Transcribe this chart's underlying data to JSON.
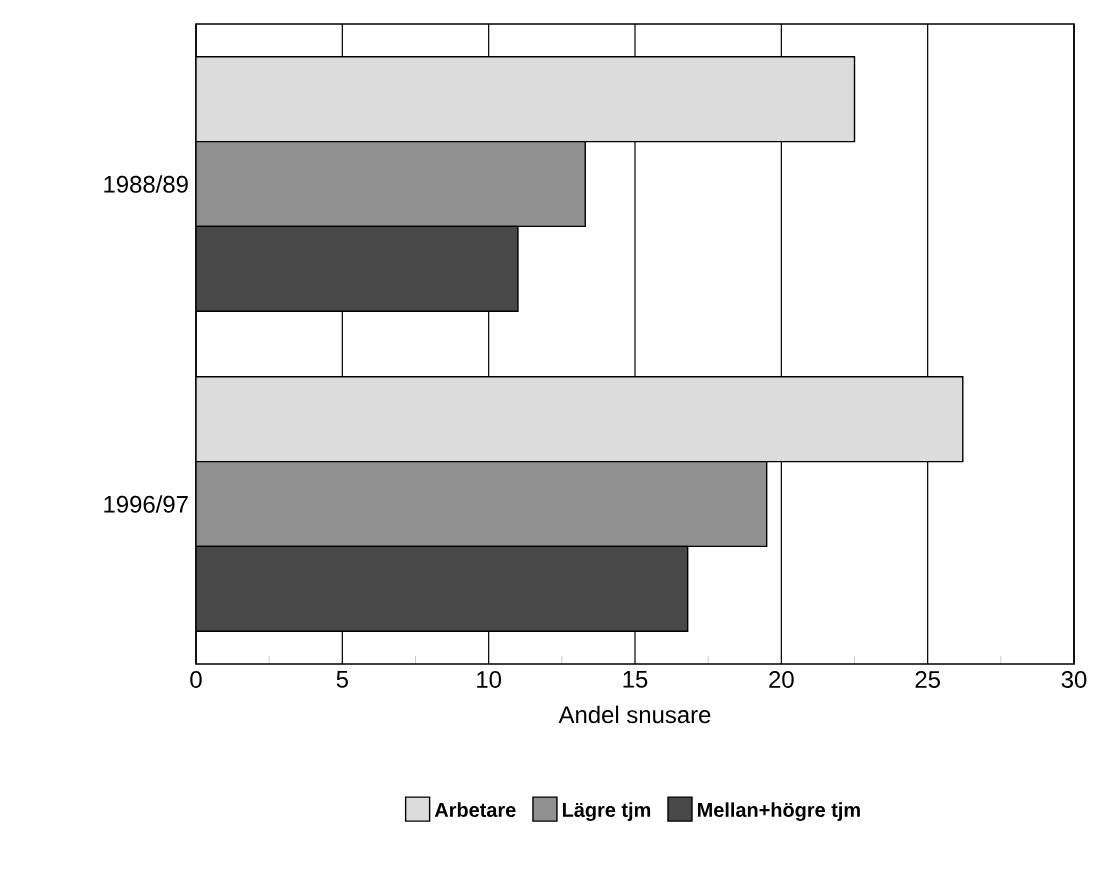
{
  "chart_data": {
    "type": "bar",
    "orientation": "horizontal",
    "xlabel": "Andel snusare",
    "categories": [
      "1988/89",
      "1996/97"
    ],
    "series": [
      {
        "name": "Arbetare",
        "color": "#dcdcdc",
        "values": [
          22.5,
          26.2
        ]
      },
      {
        "name": "Lägre tjm",
        "color": "#909090",
        "values": [
          13.3,
          19.5
        ]
      },
      {
        "name": "Mellan+högre tjm",
        "color": "#484848",
        "values": [
          11.0,
          16.8
        ]
      }
    ],
    "xlim": [
      0,
      30
    ],
    "xticks": [
      0,
      5,
      10,
      15,
      20,
      25,
      30
    ],
    "grid": "x",
    "legend": "bottom"
  }
}
